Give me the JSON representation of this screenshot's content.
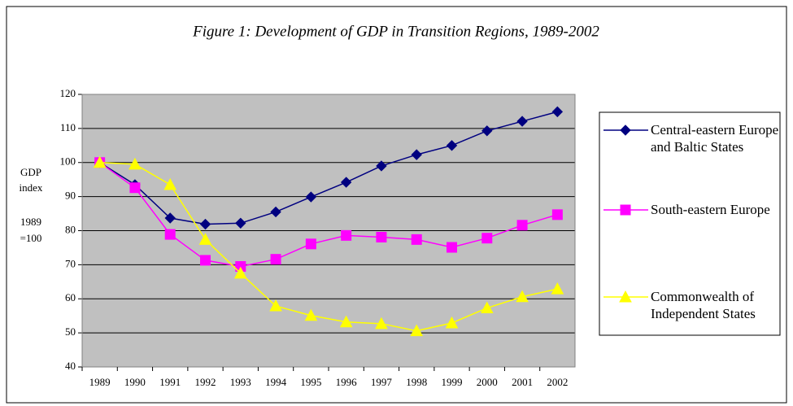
{
  "chart_data": {
    "type": "line",
    "title": "Figure 1: Development of GDP in Transition Regions, 1989-2002",
    "y_label": [
      "GDP",
      "index",
      "1989",
      "=100"
    ],
    "categories": [
      "1989",
      "1990",
      "1991",
      "1992",
      "1993",
      "1994",
      "1995",
      "1996",
      "1997",
      "1998",
      "1999",
      "2000",
      "2001",
      "2002"
    ],
    "series": [
      {
        "name": "Central-eastern Europe and Baltic States",
        "color": "#000080",
        "marker": "diamond",
        "values": [
          100,
          93.5,
          83.7,
          81.9,
          82.2,
          85.5,
          89.9,
          94.2,
          99,
          102.3,
          105,
          109.3,
          112.1,
          114.9
        ]
      },
      {
        "name": "South-eastern Europe",
        "color": "#FF00FF",
        "marker": "square",
        "values": [
          100,
          92.6,
          78.9,
          71.3,
          69.5,
          71.6,
          76.1,
          78.6,
          78.1,
          77.4,
          75.1,
          77.8,
          81.6,
          84.7
        ]
      },
      {
        "name": "Commonwealth of Independent States",
        "color": "#FFFF00",
        "marker": "triangle",
        "values": [
          100,
          99.5,
          93.5,
          77.4,
          67.5,
          57.9,
          55.1,
          53.2,
          52.7,
          50.6,
          52.9,
          57.3,
          60.6,
          62.9
        ]
      }
    ],
    "ylim": [
      40,
      120
    ],
    "yticks": [
      40,
      50,
      60,
      70,
      80,
      90,
      100,
      110,
      120
    ],
    "grid": true,
    "background": "#C0C0C0",
    "legend": "right"
  }
}
